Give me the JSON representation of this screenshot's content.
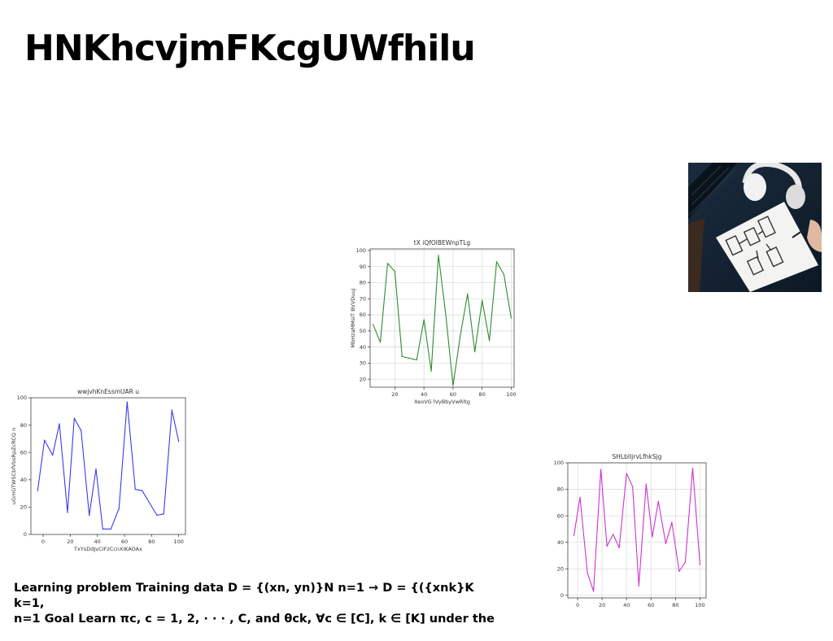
{
  "page": {
    "title": "HNKhcvjmFKcgUWfhilu",
    "body_text": [
      "Learning problem Training data D = {(xn, yn)}N n=1 → D = {({xnk}K k=1,",
      "n=1 Goal Learn πc, c = 1, 2, · · · , C, and θck, ∀c ∈ [C], k ∈ [K] under the"
    ]
  },
  "chart_data": [
    {
      "type": "line",
      "title": "tX iQfOlBEWnpTLg",
      "xlabel": "XeoVG lVyBbyVwRltg",
      "ylabel": "MbHzaMMsIT BVVDuuJ",
      "color": "#2e8b2e",
      "xlim": [
        3,
        102
      ],
      "ylim": [
        15,
        101
      ],
      "xticks": [
        20,
        40,
        60,
        80,
        100
      ],
      "yticks": [
        20,
        30,
        40,
        50,
        60,
        70,
        80,
        90,
        100
      ],
      "grid": true,
      "x": [
        5,
        10,
        15,
        20,
        25,
        30,
        35,
        40,
        45,
        50,
        55,
        60,
        65,
        70,
        75,
        80,
        85,
        90,
        95,
        100
      ],
      "y": [
        54,
        43,
        92,
        87,
        34,
        33,
        32,
        57,
        25,
        97,
        60,
        16,
        47,
        73,
        37,
        69,
        44,
        93,
        85,
        58
      ]
    },
    {
      "type": "line",
      "title": "wwjvhKnEssmUAR u",
      "xlabel": "TxYsDdJvCIFzCcnXiKAOAx",
      "ylabel": "uGmGTWSCbfVbsRpZcRCQ n",
      "color": "#3a3aee",
      "xlim": [
        -9,
        105
      ],
      "ylim": [
        0,
        100
      ],
      "xticks": [
        0,
        20,
        40,
        60,
        80,
        100
      ],
      "yticks": [
        0,
        20,
        40,
        60,
        80,
        100
      ],
      "grid": false,
      "x": [
        -4,
        1,
        7,
        12,
        18,
        23,
        28,
        34,
        39,
        44,
        50,
        56,
        62,
        68,
        73,
        84,
        89,
        95,
        100
      ],
      "y": [
        32,
        69,
        58,
        81,
        16,
        85,
        76,
        14,
        48,
        4,
        4,
        19,
        97,
        33,
        32,
        14,
        15,
        91,
        68
      ]
    },
    {
      "type": "line",
      "title": "SHLbIIjrvLfhkSjg",
      "xlabel": "",
      "ylabel": "",
      "color": "#cc33cc",
      "xlim": [
        -8,
        105
      ],
      "ylim": [
        -2,
        100
      ],
      "xticks": [
        0,
        20,
        40,
        60,
        80,
        100
      ],
      "yticks": [
        0,
        20,
        40,
        60,
        80,
        100
      ],
      "grid": true,
      "x": [
        -3,
        2,
        8,
        13,
        19,
        24,
        29,
        34,
        40,
        45,
        50,
        56,
        61,
        66,
        72,
        77,
        83,
        88,
        94,
        100
      ],
      "y": [
        45,
        74,
        17,
        3,
        95,
        37,
        46,
        36,
        92,
        82,
        7,
        84,
        44,
        71,
        39,
        55,
        18,
        25,
        96,
        23
      ]
    }
  ]
}
